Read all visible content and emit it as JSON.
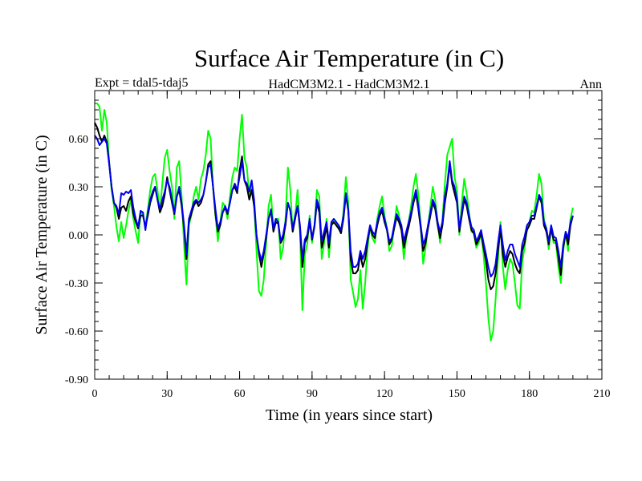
{
  "chart_data": {
    "type": "line",
    "title": "Surface Air Temperature (in C)",
    "subtitle_left": "Expt = tdal5-tdaj5",
    "subtitle_center": "HadCM3M2.1 - HadCM3M2.1",
    "subtitle_right": "Ann",
    "xlabel": "Time (in years since start)",
    "ylabel": "Surface Air Temperature (in C)",
    "xlim": [
      0,
      210
    ],
    "ylim": [
      -0.9,
      0.9
    ],
    "xticks": [
      0,
      30,
      60,
      90,
      120,
      150,
      180,
      210
    ],
    "xtick_labels": [
      "0",
      "30",
      "60",
      "90",
      "120",
      "150",
      "180",
      "210"
    ],
    "yticks": [
      -0.9,
      -0.6,
      -0.3,
      0.0,
      0.3,
      0.6
    ],
    "ytick_labels": [
      "-0.90",
      "-0.60",
      "-0.30",
      "0.00",
      "0.30",
      "0.60"
    ],
    "grid": false,
    "series": [
      {
        "name": "green",
        "color": "#00ff00",
        "x_start": 0,
        "values": [
          0.82,
          0.82,
          0.8,
          0.65,
          0.78,
          0.7,
          0.45,
          0.28,
          0.18,
          0.05,
          -0.04,
          0.08,
          -0.02,
          0.06,
          0.15,
          0.22,
          0.1,
          0.02,
          -0.05,
          0.14,
          0.12,
          0.05,
          0.16,
          0.28,
          0.36,
          0.38,
          0.28,
          0.14,
          0.32,
          0.48,
          0.53,
          0.4,
          0.3,
          0.1,
          0.42,
          0.46,
          0.24,
          -0.06,
          -0.31,
          0.06,
          0.12,
          0.24,
          0.3,
          0.22,
          0.35,
          0.4,
          0.5,
          0.65,
          0.6,
          0.3,
          0.12,
          -0.04,
          0.08,
          0.2,
          0.18,
          0.1,
          0.24,
          0.36,
          0.42,
          0.4,
          0.6,
          0.75,
          0.48,
          0.42,
          0.25,
          0.32,
          0.2,
          -0.1,
          -0.35,
          -0.38,
          -0.28,
          -0.05,
          0.18,
          0.25,
          0.04,
          0.1,
          0.1,
          -0.15,
          -0.08,
          0.1,
          0.42,
          0.28,
          0.02,
          0.12,
          0.28,
          0.02,
          -0.47,
          -0.12,
          -0.06,
          0.12,
          -0.05,
          0.06,
          0.28,
          0.24,
          -0.15,
          -0.05,
          0.1,
          -0.14,
          0.06,
          0.1,
          0.08,
          0.05,
          0.01,
          0.14,
          0.36,
          0.2,
          -0.28,
          -0.36,
          -0.45,
          -0.4,
          -0.22,
          -0.46,
          -0.3,
          -0.08,
          0.05,
          -0.02,
          -0.05,
          0.1,
          0.18,
          0.24,
          0.12,
          0.04,
          -0.1,
          -0.07,
          0.05,
          0.18,
          0.12,
          0.05,
          -0.15,
          -0.02,
          0.08,
          0.18,
          0.3,
          0.38,
          0.25,
          0.05,
          -0.18,
          -0.08,
          0.05,
          0.18,
          0.3,
          0.22,
          0.08,
          -0.05,
          0.1,
          0.32,
          0.5,
          0.55,
          0.6,
          0.36,
          0.28,
          0.0,
          0.2,
          0.35,
          0.26,
          0.14,
          0.02,
          0.01,
          -0.08,
          -0.05,
          0.01,
          -0.12,
          -0.3,
          -0.52,
          -0.66,
          -0.6,
          -0.4,
          -0.15,
          0.08,
          -0.2,
          -0.34,
          -0.22,
          -0.15,
          -0.18,
          -0.3,
          -0.44,
          -0.46,
          -0.17,
          -0.08,
          0.05,
          0.08,
          0.15,
          0.14,
          0.25,
          0.38,
          0.32,
          0.1,
          0.04,
          -0.09,
          0.05,
          -0.05,
          -0.05,
          -0.2,
          -0.3,
          -0.1,
          0.02,
          -0.1,
          0.1,
          0.17
        ]
      },
      {
        "name": "black",
        "color": "#000000",
        "x_start": 0,
        "values": [
          0.7,
          0.67,
          0.62,
          0.58,
          0.62,
          0.58,
          0.45,
          0.3,
          0.2,
          0.17,
          0.1,
          0.17,
          0.18,
          0.15,
          0.21,
          0.24,
          0.13,
          0.08,
          0.04,
          0.12,
          0.12,
          0.05,
          0.12,
          0.2,
          0.25,
          0.3,
          0.22,
          0.14,
          0.18,
          0.25,
          0.36,
          0.28,
          0.2,
          0.13,
          0.24,
          0.28,
          0.18,
          0.04,
          -0.15,
          0.08,
          0.13,
          0.18,
          0.21,
          0.18,
          0.2,
          0.25,
          0.33,
          0.44,
          0.46,
          0.3,
          0.13,
          0.02,
          0.06,
          0.14,
          0.17,
          0.13,
          0.2,
          0.28,
          0.3,
          0.26,
          0.4,
          0.49,
          0.34,
          0.3,
          0.22,
          0.28,
          0.18,
          0.0,
          -0.12,
          -0.2,
          -0.12,
          -0.02,
          0.1,
          0.15,
          0.02,
          0.08,
          0.07,
          -0.05,
          -0.02,
          0.06,
          0.2,
          0.15,
          0.02,
          0.1,
          0.18,
          0.04,
          -0.2,
          -0.05,
          -0.02,
          0.08,
          -0.03,
          0.05,
          0.2,
          0.14,
          -0.08,
          -0.02,
          0.05,
          -0.08,
          0.06,
          0.08,
          0.06,
          0.04,
          0.01,
          0.1,
          0.25,
          0.15,
          -0.15,
          -0.24,
          -0.24,
          -0.22,
          -0.12,
          -0.2,
          -0.15,
          -0.04,
          0.05,
          0.0,
          -0.02,
          0.06,
          0.12,
          0.15,
          0.08,
          0.03,
          -0.06,
          -0.03,
          0.04,
          0.11,
          0.08,
          0.03,
          -0.08,
          -0.01,
          0.05,
          0.12,
          0.2,
          0.26,
          0.16,
          0.04,
          -0.1,
          -0.05,
          0.04,
          0.12,
          0.2,
          0.16,
          0.06,
          -0.02,
          0.06,
          0.2,
          0.3,
          0.44,
          0.32,
          0.26,
          0.2,
          0.02,
          0.12,
          0.22,
          0.18,
          0.1,
          0.03,
          0.01,
          -0.06,
          -0.03,
          0.01,
          -0.08,
          -0.16,
          -0.28,
          -0.34,
          -0.32,
          -0.24,
          -0.1,
          0.04,
          -0.12,
          -0.2,
          -0.14,
          -0.1,
          -0.12,
          -0.18,
          -0.22,
          -0.24,
          -0.1,
          -0.05,
          0.03,
          0.06,
          0.1,
          0.1,
          0.17,
          0.24,
          0.2,
          0.06,
          0.02,
          -0.06,
          0.04,
          -0.03,
          -0.04,
          -0.14,
          -0.25,
          -0.08,
          0.01,
          -0.06,
          0.06,
          0.12
        ]
      },
      {
        "name": "blue",
        "color": "#0000ee",
        "x_start": 0,
        "values": [
          0.62,
          0.6,
          0.56,
          0.58,
          0.6,
          0.57,
          0.44,
          0.3,
          0.2,
          0.18,
          0.13,
          0.26,
          0.25,
          0.27,
          0.26,
          0.28,
          0.17,
          0.1,
          0.05,
          0.15,
          0.14,
          0.03,
          0.14,
          0.22,
          0.27,
          0.3,
          0.22,
          0.16,
          0.22,
          0.27,
          0.34,
          0.3,
          0.22,
          0.14,
          0.24,
          0.3,
          0.2,
          0.06,
          -0.12,
          0.1,
          0.15,
          0.2,
          0.22,
          0.2,
          0.22,
          0.25,
          0.33,
          0.42,
          0.44,
          0.3,
          0.16,
          0.04,
          0.08,
          0.14,
          0.18,
          0.14,
          0.2,
          0.28,
          0.32,
          0.28,
          0.36,
          0.46,
          0.34,
          0.32,
          0.27,
          0.34,
          0.22,
          0.0,
          -0.1,
          -0.16,
          -0.1,
          0.0,
          0.1,
          0.16,
          0.04,
          0.1,
          0.08,
          -0.04,
          0.0,
          0.08,
          0.2,
          0.15,
          0.04,
          0.12,
          0.18,
          0.06,
          -0.15,
          -0.03,
          0.0,
          0.1,
          -0.02,
          0.06,
          0.22,
          0.17,
          -0.04,
          0.02,
          0.08,
          -0.05,
          0.08,
          0.1,
          0.08,
          0.06,
          0.03,
          0.12,
          0.26,
          0.16,
          -0.1,
          -0.2,
          -0.2,
          -0.18,
          -0.1,
          -0.15,
          -0.1,
          -0.02,
          0.06,
          0.02,
          0.0,
          0.08,
          0.14,
          0.17,
          0.1,
          0.04,
          -0.04,
          -0.02,
          0.06,
          0.13,
          0.1,
          0.06,
          -0.04,
          0.02,
          0.08,
          0.14,
          0.22,
          0.28,
          0.18,
          0.06,
          -0.06,
          -0.02,
          0.06,
          0.14,
          0.22,
          0.18,
          0.08,
          0.02,
          0.08,
          0.24,
          0.32,
          0.46,
          0.34,
          0.3,
          0.22,
          0.04,
          0.14,
          0.24,
          0.2,
          0.12,
          0.05,
          0.03,
          -0.04,
          -0.01,
          0.03,
          -0.05,
          -0.12,
          -0.2,
          -0.26,
          -0.24,
          -0.18,
          -0.05,
          0.06,
          -0.06,
          -0.16,
          -0.1,
          -0.06,
          -0.06,
          -0.12,
          -0.16,
          -0.2,
          -0.06,
          -0.01,
          0.06,
          0.08,
          0.12,
          0.12,
          0.18,
          0.25,
          0.22,
          0.08,
          0.04,
          -0.04,
          0.06,
          -0.01,
          -0.02,
          -0.1,
          -0.2,
          -0.06,
          0.02,
          -0.02,
          0.08,
          0.12
        ]
      }
    ]
  }
}
